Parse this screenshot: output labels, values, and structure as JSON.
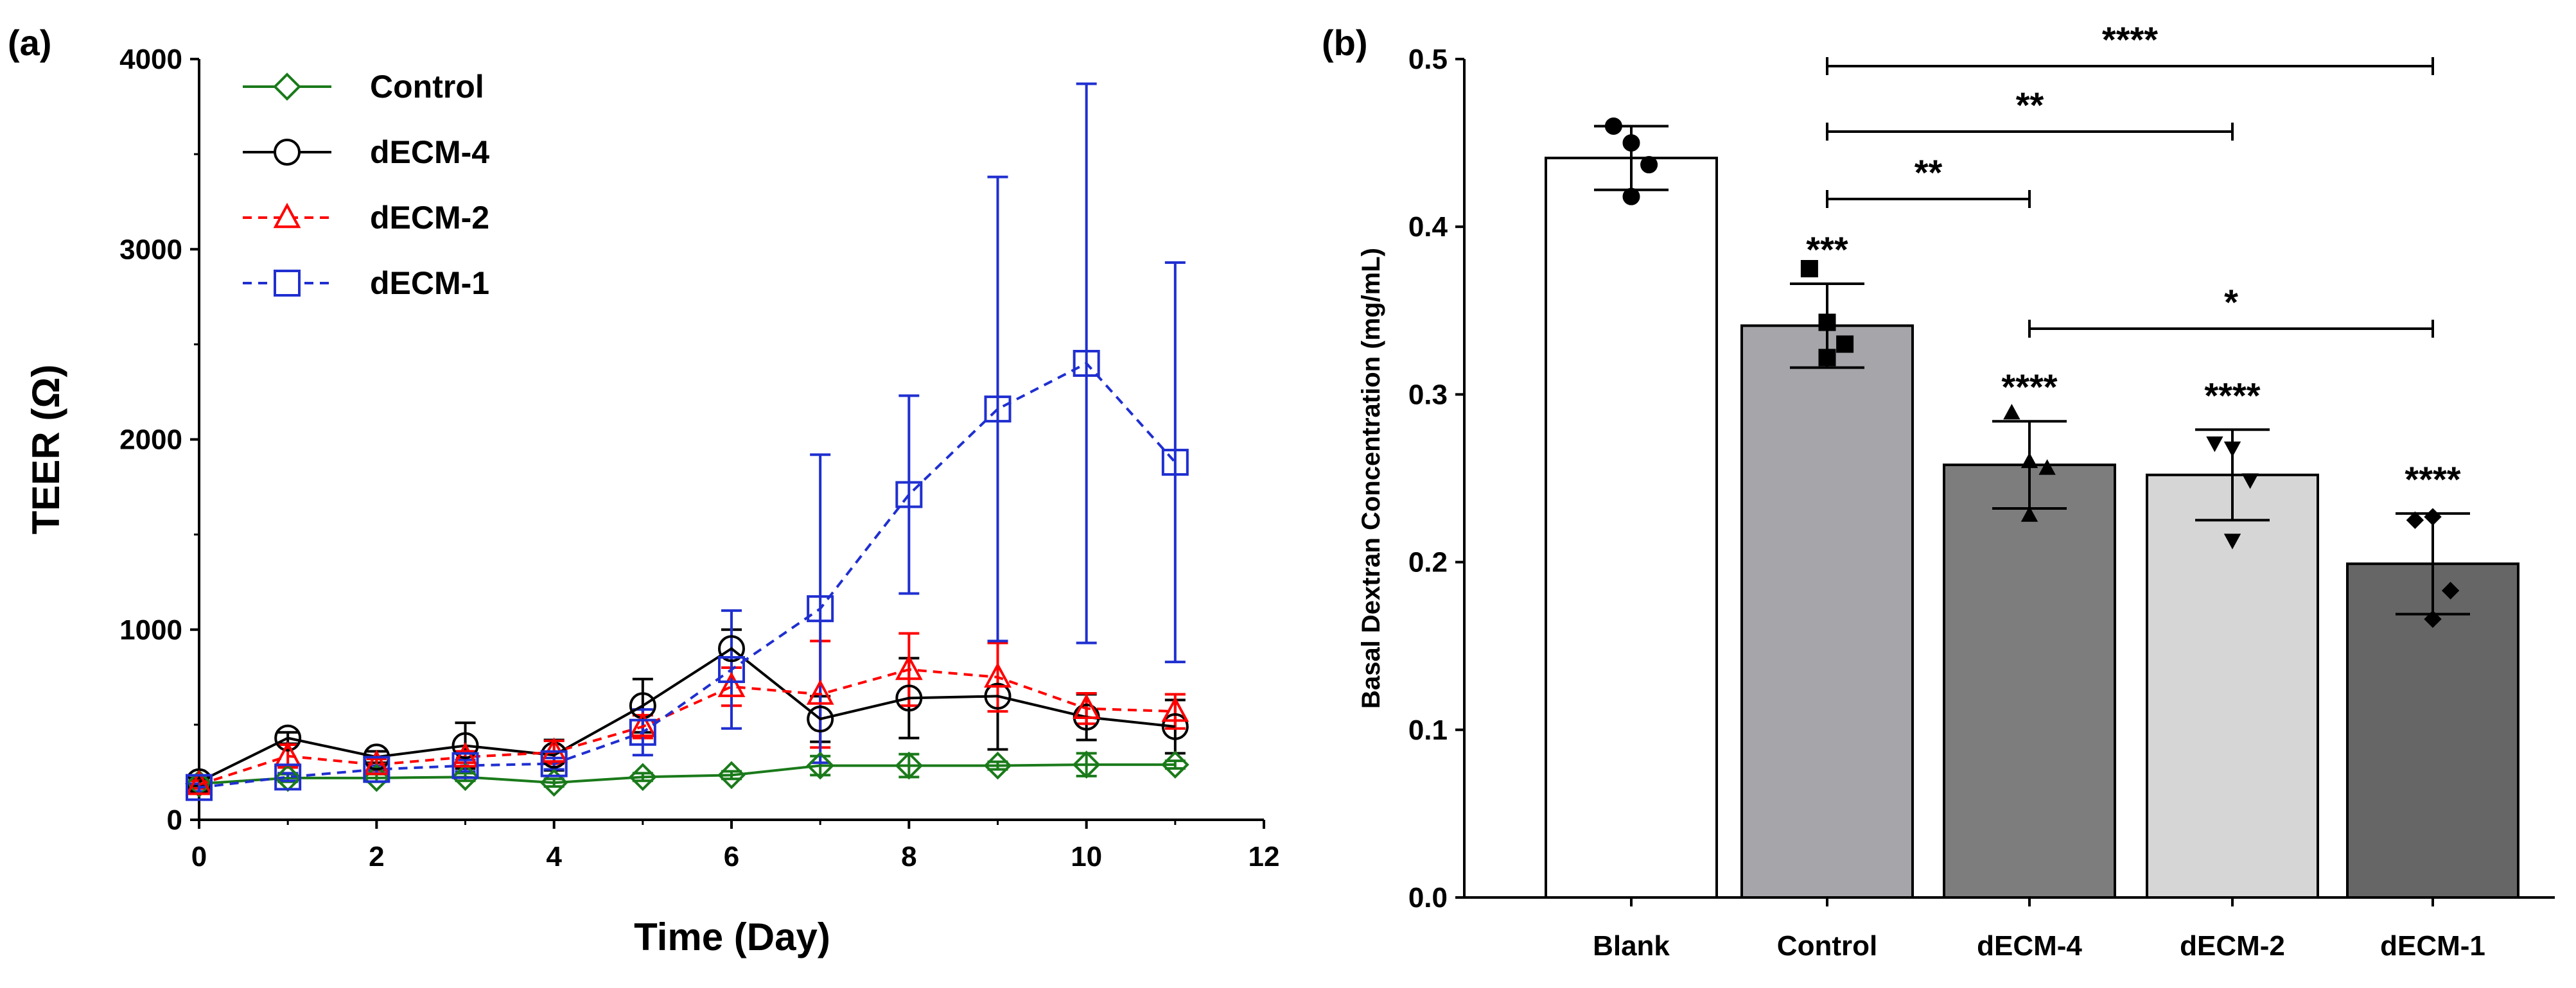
{
  "chart_data": [
    {
      "panel_label": "(a)",
      "type": "line",
      "xlabel": "Time (Day)",
      "ylabel": "TEER (Ω)",
      "xlim": [
        0,
        12
      ],
      "ylim": [
        0,
        4000
      ],
      "xticks": [
        "0",
        "2",
        "4",
        "6",
        "8",
        "10",
        "12"
      ],
      "yticks": [
        "0",
        "1000",
        "2000",
        "3000",
        "4000"
      ],
      "legend_position": "top-left",
      "x": [
        0,
        1,
        2,
        3,
        4,
        5,
        6,
        7,
        8,
        9,
        10,
        11
      ],
      "series": [
        {
          "name": "Control",
          "color": "#1a7a1a",
          "marker": "diamond",
          "dash": "solid",
          "values": [
            190,
            220,
            220,
            225,
            195,
            225,
            235,
            285,
            285,
            285,
            290,
            290
          ],
          "err": [
            20,
            20,
            20,
            20,
            20,
            20,
            20,
            50,
            60,
            20,
            60,
            20
          ]
        },
        {
          "name": "dECM-4",
          "color": "#000000",
          "marker": "circle",
          "dash": "solid",
          "values": [
            200,
            430,
            330,
            390,
            340,
            600,
            900,
            530,
            640,
            650,
            540,
            490
          ],
          "err": [
            20,
            30,
            30,
            120,
            80,
            140,
            100,
            120,
            210,
            280,
            120,
            140
          ]
        },
        {
          "name": "dECM-2",
          "color": "#ff0000",
          "marker": "triangle",
          "dash": "dashed",
          "values": [
            185,
            335,
            290,
            330,
            355,
            490,
            700,
            660,
            790,
            750,
            585,
            570
          ],
          "err": [
            20,
            60,
            30,
            30,
            60,
            60,
            100,
            280,
            190,
            180,
            80,
            90
          ]
        },
        {
          "name": "dECM-1",
          "color": "#1f2fd0",
          "marker": "square",
          "dash": "dashed",
          "values": [
            170,
            225,
            265,
            285,
            295,
            460,
            790,
            1110,
            1710,
            2160,
            2400,
            1880
          ],
          "err": [
            20,
            20,
            20,
            30,
            30,
            120,
            310,
            810,
            520,
            1220,
            1470,
            1050
          ]
        }
      ]
    },
    {
      "panel_label": "(b)",
      "type": "bar",
      "ylabel": "Basal Dextran Concentration (mg/mL)",
      "ylim": [
        0,
        0.5
      ],
      "yticks": [
        "0.0",
        "0.1",
        "0.2",
        "0.3",
        "0.4",
        "0.5"
      ],
      "categories": [
        "Blank",
        "Control",
        "dECM-4",
        "dECM-2",
        "dECM-1"
      ],
      "values": [
        0.441,
        0.341,
        0.258,
        0.252,
        0.199
      ],
      "sd": [
        0.019,
        0.025,
        0.026,
        0.027,
        0.03
      ],
      "bar_colors": [
        "#ffffff",
        "#a5a5aa",
        "#7d7d7d",
        "#d6d6d6",
        "#666666"
      ],
      "points": [
        {
          "marker": "circle",
          "values": [
            0.46,
            0.45,
            0.437,
            0.418
          ]
        },
        {
          "marker": "square",
          "values": [
            0.375,
            0.343,
            0.33,
            0.322
          ]
        },
        {
          "marker": "triangle",
          "values": [
            0.289,
            0.26,
            0.256,
            0.228
          ]
        },
        {
          "marker": "triangle-down",
          "values": [
            0.271,
            0.268,
            0.249,
            0.213
          ]
        },
        {
          "marker": "diamond",
          "values": [
            0.225,
            0.227,
            0.183,
            0.166
          ]
        }
      ],
      "significance_over_bars": [
        "",
        "***",
        "****",
        "****",
        "****"
      ],
      "brackets": [
        {
          "from": "Control",
          "to": "dECM-1",
          "label": "****"
        },
        {
          "from": "Control",
          "to": "dECM-2",
          "label": "**"
        },
        {
          "from": "Control",
          "to": "dECM-4",
          "label": "**"
        },
        {
          "from": "dECM-4",
          "to": "dECM-1",
          "label": "*"
        }
      ]
    }
  ]
}
